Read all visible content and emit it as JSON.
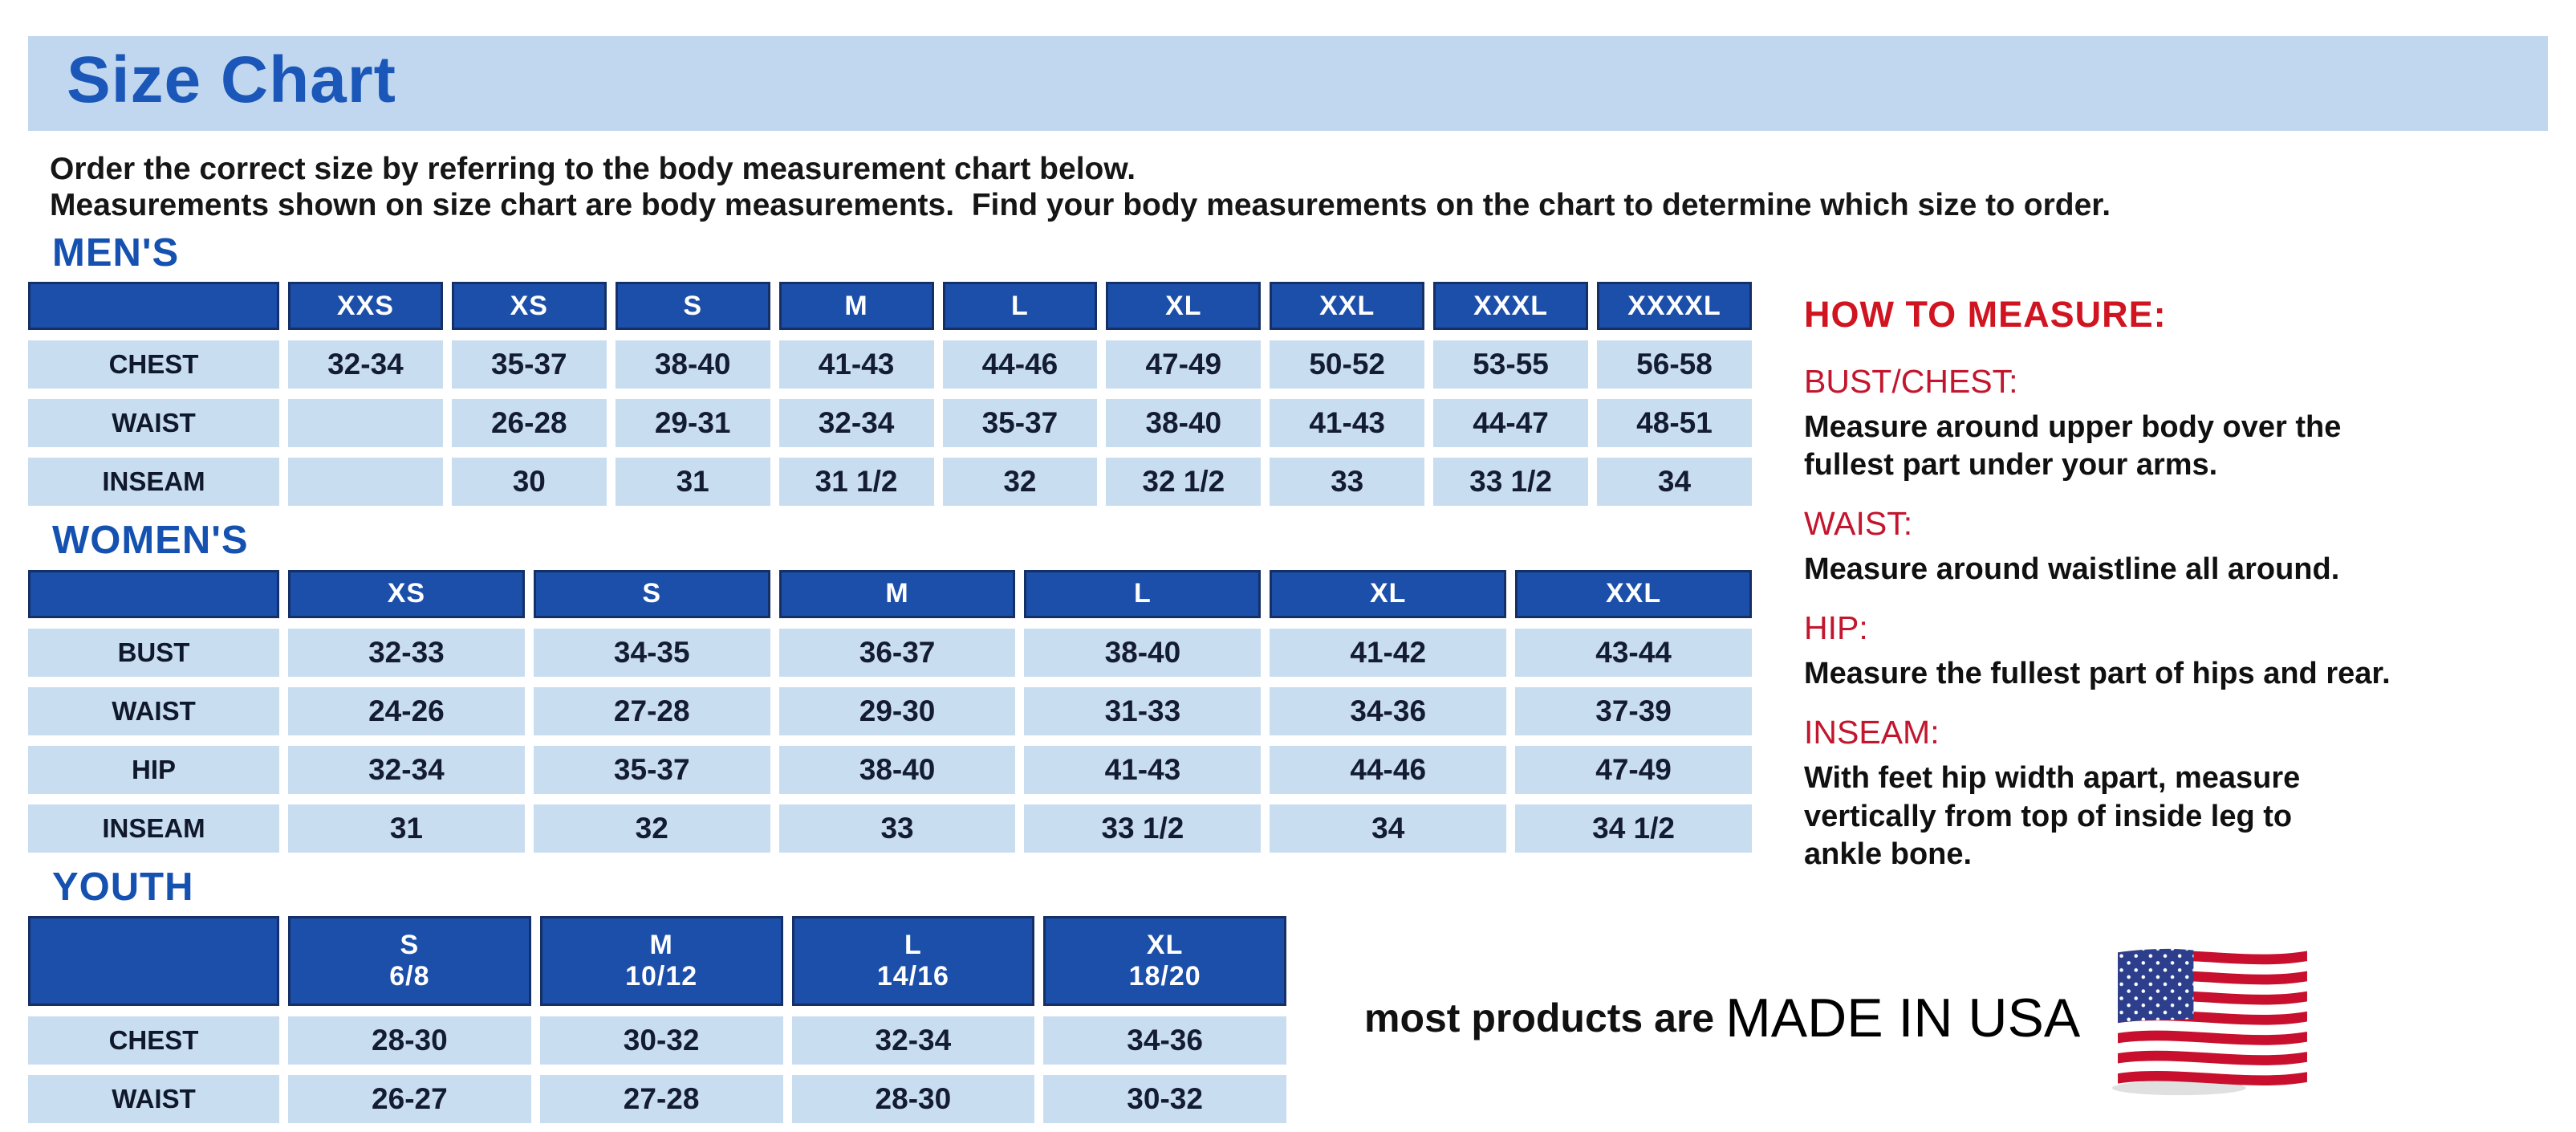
{
  "page": {
    "title": "Size Chart",
    "intro_line1": "Order the correct size by referring to the body measurement chart below.",
    "intro_line2": "Measurements shown on size chart are body measurements.  Find your body measurements on the chart to determine which size to order."
  },
  "tables": {
    "mens": {
      "heading": "MEN'S",
      "headers": [
        "",
        "XXS",
        "XS",
        "S",
        "M",
        "L",
        "XL",
        "XXL",
        "XXXL",
        "XXXXL"
      ],
      "rows": [
        {
          "label": "CHEST",
          "values": [
            "32-34",
            "35-37",
            "38-40",
            "41-43",
            "44-46",
            "47-49",
            "50-52",
            "53-55",
            "56-58"
          ]
        },
        {
          "label": "WAIST",
          "values": [
            "",
            "26-28",
            "29-31",
            "32-34",
            "35-37",
            "38-40",
            "41-43",
            "44-47",
            "48-51"
          ]
        },
        {
          "label": "INSEAM",
          "values": [
            "",
            "30",
            "31",
            "31 1/2",
            "32",
            "32 1/2",
            "33",
            "33 1/2",
            "34"
          ]
        }
      ]
    },
    "womens": {
      "heading": "WOMEN'S",
      "headers": [
        "",
        "XS",
        "S",
        "M",
        "L",
        "XL",
        "XXL"
      ],
      "rows": [
        {
          "label": "BUST",
          "values": [
            "32-33",
            "34-35",
            "36-37",
            "38-40",
            "41-42",
            "43-44"
          ]
        },
        {
          "label": "WAIST",
          "values": [
            "24-26",
            "27-28",
            "29-30",
            "31-33",
            "34-36",
            "37-39"
          ]
        },
        {
          "label": "HIP",
          "values": [
            "32-34",
            "35-37",
            "38-40",
            "41-43",
            "44-46",
            "47-49"
          ]
        },
        {
          "label": "INSEAM",
          "values": [
            "31",
            "32",
            "33",
            "33 1/2",
            "34",
            "34 1/2"
          ]
        }
      ]
    },
    "youth": {
      "heading": "YOUTH",
      "headers": [
        "",
        "S\n6/8",
        "M\n10/12",
        "L\n14/16",
        "XL\n18/20"
      ],
      "rows": [
        {
          "label": "CHEST",
          "values": [
            "28-30",
            "30-32",
            "32-34",
            "34-36"
          ]
        },
        {
          "label": "WAIST",
          "values": [
            "26-27",
            "27-28",
            "28-30",
            "30-32"
          ]
        }
      ]
    }
  },
  "how_to_measure": {
    "heading": "HOW TO MEASURE:",
    "sections": [
      {
        "term": "BUST/CHEST:",
        "description": "Measure around upper body over the\nfullest part under your arms."
      },
      {
        "term": "WAIST:",
        "description": "Measure around waistline all around."
      },
      {
        "term": "HIP:",
        "description": "Measure the fullest part of hips and rear."
      },
      {
        "term": "INSEAM:",
        "description": "With feet hip width apart, measure\nvertically from top of inside leg to\nankle bone."
      }
    ]
  },
  "footer": {
    "made_in_prefix": "most products are ",
    "made_in": "MADE IN USA",
    "flag_icon": "usa-flag-icon"
  },
  "colors": {
    "banner_bg": "#c0d7ef",
    "title_blue": "#1a57b8",
    "section_heading_blue": "#1551b0",
    "table_header_bg": "#1c4fa9",
    "table_header_border": "#143067",
    "table_cell_bg": "#c9ddf1",
    "table_cell_text": "#141c33",
    "measure_heading_red": "#d01420",
    "measure_term_red": "#c2162e",
    "flag_red": "#c8102e",
    "flag_navy": "#2d3f8c"
  }
}
